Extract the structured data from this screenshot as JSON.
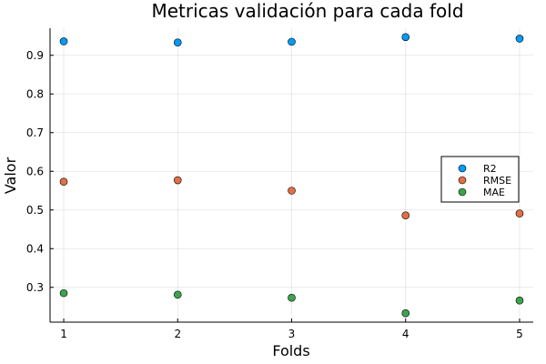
{
  "chart_data": {
    "type": "scatter",
    "title": "Metricas validación para cada fold",
    "xlabel": "Folds",
    "ylabel": "Valor",
    "x": [
      1,
      2,
      3,
      4,
      5
    ],
    "xticks": [
      "1",
      "2",
      "3",
      "4",
      "5"
    ],
    "yticks": [
      "0.3",
      "0.4",
      "0.5",
      "0.6",
      "0.7",
      "0.8",
      "0.9"
    ],
    "xlim": [
      0.88,
      5.12
    ],
    "ylim": [
      0.21,
      0.97
    ],
    "grid": true,
    "legend_position": "right",
    "series": [
      {
        "name": "R2",
        "color": "#009af9",
        "values": [
          0.936,
          0.933,
          0.935,
          0.947,
          0.943
        ]
      },
      {
        "name": "RMSE",
        "color": "#e26f46",
        "values": [
          0.573,
          0.577,
          0.55,
          0.486,
          0.491
        ]
      },
      {
        "name": "MAE",
        "color": "#3da44d",
        "values": [
          0.285,
          0.281,
          0.273,
          0.233,
          0.266
        ]
      }
    ]
  }
}
